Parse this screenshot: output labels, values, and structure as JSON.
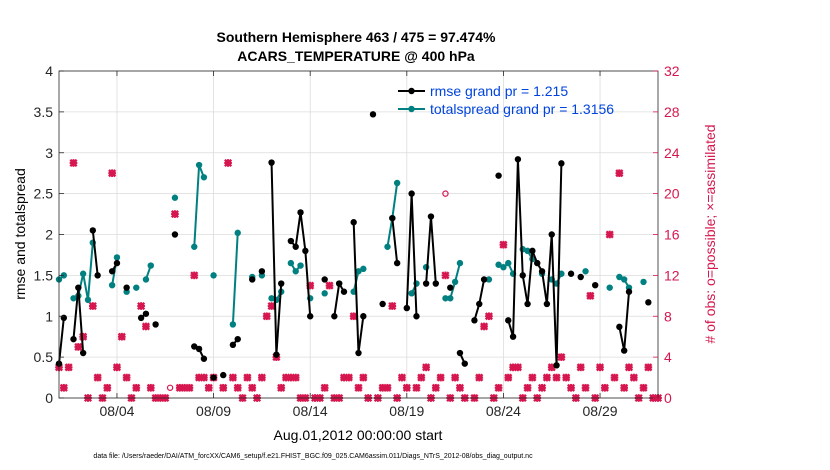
{
  "colors": {
    "rmse": "#000000",
    "spread": "#008080",
    "obs": "#d6174f",
    "legend_text": "#0044dd",
    "axis": "#262626",
    "grid": "#dcdcdc"
  },
  "chart_data": {
    "type": "scatter",
    "title": "Southern Hemisphere 463 / 475 = 97.474%",
    "subtitle": "ACARS_TEMPERATURE @ 400 hPa",
    "ylabel": "rmse and totalspread",
    "y2label": "# of obs: o=possible; ×=assimilated",
    "xlabel": "Aug.01,2012 00:00:00 start",
    "xlim": [
      0,
      31
    ],
    "ylim": [
      0,
      4
    ],
    "y2lim": [
      0,
      32
    ],
    "xticks": [
      3,
      8,
      13,
      18,
      23,
      28
    ],
    "xtick_labels": [
      "08/04",
      "08/09",
      "08/14",
      "08/19",
      "08/24",
      "08/29"
    ],
    "yticks": [
      "0",
      "0.5",
      "1",
      "1.5",
      "2",
      "2.5",
      "3",
      "3.5",
      "4"
    ],
    "y2ticks": [
      "0",
      "4",
      "8",
      "12",
      "16",
      "20",
      "24",
      "28",
      "32"
    ],
    "grid": true,
    "legend_placement": "top-right",
    "legend": [
      {
        "label": "rmse grand pr = 1.215",
        "series": "rmse"
      },
      {
        "label": "totalspread grand pr = 1.3156",
        "series": "spread"
      }
    ],
    "rmse": [
      [
        0.0,
        0.42
      ],
      [
        0.25,
        0.98
      ],
      [
        0.75,
        0.72
      ],
      [
        1.0,
        1.35
      ],
      [
        1.25,
        0.55
      ],
      [
        1.75,
        2.05
      ],
      [
        2.0,
        1.5
      ],
      [
        2.75,
        1.55
      ],
      [
        3.0,
        1.65
      ],
      [
        3.5,
        1.35
      ],
      [
        4.25,
        0.98
      ],
      [
        4.5,
        1.03
      ],
      [
        5.0,
        0.9
      ],
      [
        6.0,
        2.0
      ],
      [
        7.0,
        0.63
      ],
      [
        7.25,
        0.6
      ],
      [
        7.5,
        0.48
      ],
      [
        8.0,
        0.25
      ],
      [
        8.5,
        0.28
      ],
      [
        9.0,
        0.65
      ],
      [
        9.25,
        0.72
      ],
      [
        10.0,
        1.45
      ],
      [
        10.5,
        1.55
      ],
      [
        11.0,
        2.88
      ],
      [
        11.25,
        0.53
      ],
      [
        11.5,
        1.4
      ],
      [
        12.0,
        1.92
      ],
      [
        12.25,
        1.85
      ],
      [
        12.5,
        2.27
      ],
      [
        12.75,
        1.8
      ],
      [
        13.0,
        1.0
      ],
      [
        13.75,
        1.45
      ],
      [
        14.25,
        1.0
      ],
      [
        14.5,
        1.4
      ],
      [
        14.75,
        1.3
      ],
      [
        15.25,
        2.15
      ],
      [
        15.5,
        0.55
      ],
      [
        15.75,
        1.0
      ],
      [
        16.25,
        3.47
      ],
      [
        16.75,
        1.15
      ],
      [
        17.25,
        2.2
      ],
      [
        17.5,
        1.65
      ],
      [
        18.0,
        1.1
      ],
      [
        18.25,
        2.5
      ],
      [
        18.5,
        1.0
      ],
      [
        19.0,
        1.4
      ],
      [
        19.25,
        2.22
      ],
      [
        19.5,
        1.4
      ],
      [
        20.25,
        1.35
      ],
      [
        20.75,
        0.55
      ],
      [
        21.0,
        0.42
      ],
      [
        21.5,
        0.95
      ],
      [
        21.75,
        1.15
      ],
      [
        22.0,
        1.45
      ],
      [
        22.75,
        2.72
      ],
      [
        23.25,
        0.95
      ],
      [
        23.5,
        0.75
      ],
      [
        23.75,
        2.92
      ],
      [
        24.0,
        1.5
      ],
      [
        24.25,
        1.15
      ],
      [
        24.5,
        1.8
      ],
      [
        24.75,
        1.65
      ],
      [
        25.0,
        1.55
      ],
      [
        25.25,
        1.15
      ],
      [
        25.5,
        2.0
      ],
      [
        25.75,
        0.4
      ],
      [
        26.0,
        2.87
      ],
      [
        26.5,
        1.52
      ],
      [
        27.0,
        1.48
      ],
      [
        27.75,
        1.38
      ],
      [
        29.0,
        0.87
      ],
      [
        29.25,
        0.58
      ],
      [
        29.5,
        1.3
      ],
      [
        30.5,
        1.17
      ]
    ],
    "spread": [
      [
        0.0,
        1.45
      ],
      [
        0.25,
        1.5
      ],
      [
        0.75,
        1.22
      ],
      [
        1.0,
        1.25
      ],
      [
        1.25,
        1.52
      ],
      [
        1.5,
        1.2
      ],
      [
        1.75,
        1.9
      ],
      [
        2.75,
        1.38
      ],
      [
        3.0,
        1.72
      ],
      [
        3.5,
        1.3
      ],
      [
        4.0,
        1.35
      ],
      [
        4.5,
        1.45
      ],
      [
        4.75,
        1.62
      ],
      [
        6.0,
        2.45
      ],
      [
        7.0,
        1.85
      ],
      [
        7.25,
        2.85
      ],
      [
        7.5,
        2.7
      ],
      [
        8.0,
        1.5
      ],
      [
        9.0,
        0.9
      ],
      [
        9.25,
        2.02
      ],
      [
        10.0,
        1.48
      ],
      [
        10.5,
        1.5
      ],
      [
        11.0,
        1.22
      ],
      [
        11.25,
        1.2
      ],
      [
        11.5,
        1.3
      ],
      [
        12.0,
        1.65
      ],
      [
        12.25,
        1.55
      ],
      [
        12.5,
        1.62
      ],
      [
        13.0,
        1.22
      ],
      [
        13.75,
        1.28
      ],
      [
        14.5,
        1.4
      ],
      [
        15.25,
        1.3
      ],
      [
        15.5,
        1.55
      ],
      [
        15.75,
        1.58
      ],
      [
        17.0,
        1.85
      ],
      [
        17.25,
        2.2
      ],
      [
        17.5,
        2.63
      ],
      [
        18.25,
        1.28
      ],
      [
        18.5,
        1.4
      ],
      [
        19.0,
        1.6
      ],
      [
        20.0,
        1.22
      ],
      [
        20.25,
        1.22
      ],
      [
        20.5,
        1.42
      ],
      [
        20.75,
        1.65
      ],
      [
        22.25,
        1.45
      ],
      [
        22.75,
        1.63
      ],
      [
        23.0,
        1.6
      ],
      [
        23.25,
        1.65
      ],
      [
        23.5,
        1.52
      ],
      [
        24.0,
        1.82
      ],
      [
        24.25,
        1.8
      ],
      [
        24.5,
        1.7
      ],
      [
        25.0,
        1.52
      ],
      [
        25.5,
        1.45
      ],
      [
        25.75,
        1.4
      ],
      [
        26.0,
        1.52
      ],
      [
        27.25,
        1.55
      ],
      [
        28.5,
        1.35
      ],
      [
        29.0,
        1.48
      ],
      [
        29.25,
        1.45
      ],
      [
        29.5,
        1.35
      ],
      [
        30.25,
        1.42
      ]
    ],
    "assimilated": [
      [
        0.0,
        3
      ],
      [
        0.25,
        1
      ],
      [
        0.5,
        3
      ],
      [
        0.75,
        23
      ],
      [
        1.0,
        5
      ],
      [
        1.25,
        6
      ],
      [
        1.5,
        0
      ],
      [
        1.75,
        9
      ],
      [
        2.0,
        2
      ],
      [
        2.25,
        0
      ],
      [
        2.5,
        1
      ],
      [
        2.75,
        22
      ],
      [
        3.0,
        3
      ],
      [
        3.25,
        6
      ],
      [
        3.5,
        2
      ],
      [
        3.75,
        0
      ],
      [
        4.0,
        1
      ],
      [
        4.25,
        9
      ],
      [
        4.5,
        7
      ],
      [
        4.75,
        1
      ],
      [
        5.0,
        0
      ],
      [
        5.25,
        0
      ],
      [
        5.5,
        0
      ],
      [
        6.0,
        18
      ],
      [
        6.25,
        1
      ],
      [
        6.5,
        1
      ],
      [
        6.75,
        1
      ],
      [
        7.0,
        12
      ],
      [
        7.25,
        2
      ],
      [
        7.5,
        2
      ],
      [
        7.75,
        1
      ],
      [
        8.0,
        2
      ],
      [
        8.5,
        1
      ],
      [
        8.75,
        23
      ],
      [
        9.0,
        2
      ],
      [
        9.25,
        1
      ],
      [
        9.5,
        0
      ],
      [
        9.75,
        2
      ],
      [
        10.0,
        1
      ],
      [
        10.25,
        0
      ],
      [
        10.5,
        2
      ],
      [
        10.75,
        8
      ],
      [
        11.0,
        9
      ],
      [
        11.25,
        4
      ],
      [
        11.5,
        1
      ],
      [
        11.75,
        2
      ],
      [
        12.0,
        2
      ],
      [
        12.25,
        2
      ],
      [
        12.5,
        0
      ],
      [
        12.75,
        0
      ],
      [
        13.0,
        11
      ],
      [
        13.25,
        0
      ],
      [
        13.5,
        0
      ],
      [
        13.75,
        1
      ],
      [
        14.0,
        11
      ],
      [
        14.25,
        0
      ],
      [
        14.5,
        0
      ],
      [
        14.75,
        2
      ],
      [
        15.0,
        2
      ],
      [
        15.25,
        8
      ],
      [
        15.5,
        1
      ],
      [
        15.75,
        2
      ],
      [
        16.0,
        0
      ],
      [
        16.5,
        0
      ],
      [
        16.75,
        1
      ],
      [
        17.0,
        1
      ],
      [
        17.25,
        9
      ],
      [
        17.5,
        0
      ],
      [
        17.75,
        2
      ],
      [
        18.0,
        1
      ],
      [
        18.5,
        1
      ],
      [
        18.75,
        2
      ],
      [
        19.0,
        3
      ],
      [
        19.25,
        0
      ],
      [
        19.5,
        1
      ],
      [
        19.75,
        2
      ],
      [
        20.0,
        12
      ],
      [
        20.25,
        0
      ],
      [
        20.5,
        2
      ],
      [
        20.75,
        1
      ],
      [
        21.0,
        0
      ],
      [
        21.5,
        0
      ],
      [
        21.75,
        2
      ],
      [
        22.0,
        7
      ],
      [
        22.25,
        8
      ],
      [
        22.5,
        0
      ],
      [
        22.75,
        1
      ],
      [
        23.0,
        15
      ],
      [
        23.25,
        2
      ],
      [
        23.5,
        3
      ],
      [
        23.75,
        3
      ],
      [
        24.0,
        0
      ],
      [
        24.25,
        1
      ],
      [
        24.5,
        2
      ],
      [
        24.75,
        0
      ],
      [
        25.0,
        1
      ],
      [
        25.25,
        2
      ],
      [
        25.5,
        3
      ],
      [
        25.75,
        2
      ],
      [
        26.0,
        4
      ],
      [
        26.25,
        2
      ],
      [
        26.5,
        1
      ],
      [
        26.75,
        0
      ],
      [
        27.0,
        3
      ],
      [
        27.25,
        1
      ],
      [
        27.5,
        10
      ],
      [
        27.75,
        0
      ],
      [
        28.0,
        3
      ],
      [
        28.25,
        1
      ],
      [
        28.5,
        16
      ],
      [
        28.75,
        2
      ],
      [
        29.0,
        22
      ],
      [
        29.25,
        1
      ],
      [
        29.5,
        3
      ],
      [
        29.75,
        2
      ],
      [
        30.0,
        0
      ],
      [
        30.25,
        1
      ],
      [
        30.5,
        3
      ],
      [
        30.75,
        0
      ],
      [
        31.0,
        0
      ]
    ],
    "possible": [
      [
        0.0,
        3
      ],
      [
        0.25,
        1
      ],
      [
        0.5,
        3
      ],
      [
        0.75,
        23
      ],
      [
        1.0,
        5
      ],
      [
        1.25,
        6
      ],
      [
        1.5,
        0
      ],
      [
        1.75,
        9
      ],
      [
        2.0,
        2
      ],
      [
        2.25,
        0
      ],
      [
        2.5,
        1
      ],
      [
        2.75,
        22
      ],
      [
        3.0,
        3
      ],
      [
        3.25,
        6
      ],
      [
        3.5,
        2
      ],
      [
        3.75,
        0
      ],
      [
        4.0,
        1
      ],
      [
        4.25,
        9
      ],
      [
        4.5,
        7
      ],
      [
        4.75,
        1
      ],
      [
        5.0,
        0
      ],
      [
        5.25,
        0
      ],
      [
        5.5,
        0
      ],
      [
        5.75,
        1
      ],
      [
        6.0,
        18
      ],
      [
        6.25,
        1
      ],
      [
        6.5,
        1
      ],
      [
        6.75,
        1
      ],
      [
        7.0,
        12
      ],
      [
        7.25,
        2
      ],
      [
        7.5,
        2
      ],
      [
        7.75,
        1
      ],
      [
        8.0,
        2
      ],
      [
        8.5,
        1
      ],
      [
        8.75,
        23
      ],
      [
        9.0,
        2
      ],
      [
        9.25,
        1
      ],
      [
        9.5,
        0
      ],
      [
        9.75,
        2
      ],
      [
        10.0,
        1
      ],
      [
        10.25,
        0
      ],
      [
        10.5,
        2
      ],
      [
        10.75,
        8
      ],
      [
        11.0,
        9
      ],
      [
        11.25,
        4
      ],
      [
        11.5,
        1
      ],
      [
        11.75,
        2
      ],
      [
        12.0,
        2
      ],
      [
        12.25,
        2
      ],
      [
        12.5,
        0
      ],
      [
        12.75,
        0
      ],
      [
        13.0,
        11
      ],
      [
        13.25,
        0
      ],
      [
        13.5,
        0
      ],
      [
        13.75,
        1
      ],
      [
        14.0,
        11
      ],
      [
        14.25,
        0
      ],
      [
        14.5,
        0
      ],
      [
        14.75,
        2
      ],
      [
        15.0,
        2
      ],
      [
        15.25,
        8
      ],
      [
        15.5,
        1
      ],
      [
        15.75,
        2
      ],
      [
        16.0,
        0
      ],
      [
        16.5,
        0
      ],
      [
        16.75,
        1
      ],
      [
        17.0,
        1
      ],
      [
        17.25,
        9
      ],
      [
        17.5,
        0
      ],
      [
        17.75,
        2
      ],
      [
        18.0,
        1
      ],
      [
        18.5,
        1
      ],
      [
        18.75,
        2
      ],
      [
        19.0,
        3
      ],
      [
        19.25,
        0
      ],
      [
        19.5,
        1
      ],
      [
        19.75,
        2
      ],
      [
        20.0,
        20
      ],
      [
        20.25,
        0
      ],
      [
        20.5,
        2
      ],
      [
        20.75,
        1
      ],
      [
        21.0,
        0
      ],
      [
        21.5,
        0
      ],
      [
        21.75,
        2
      ],
      [
        22.0,
        7
      ],
      [
        22.25,
        8
      ],
      [
        22.5,
        0
      ],
      [
        22.75,
        1
      ],
      [
        23.0,
        15
      ],
      [
        23.25,
        2
      ],
      [
        23.5,
        3
      ],
      [
        23.75,
        3
      ],
      [
        24.0,
        0
      ],
      [
        24.25,
        1
      ],
      [
        24.5,
        2
      ],
      [
        24.75,
        0
      ],
      [
        25.0,
        1
      ],
      [
        25.25,
        2
      ],
      [
        25.5,
        3
      ],
      [
        25.75,
        2
      ],
      [
        26.0,
        4
      ],
      [
        26.25,
        2
      ],
      [
        26.5,
        1
      ],
      [
        26.75,
        0
      ],
      [
        27.0,
        3
      ],
      [
        27.25,
        1
      ],
      [
        27.5,
        10
      ],
      [
        27.75,
        0
      ],
      [
        28.0,
        3
      ],
      [
        28.25,
        1
      ],
      [
        28.5,
        16
      ],
      [
        28.75,
        2
      ],
      [
        29.0,
        22
      ],
      [
        29.25,
        1
      ],
      [
        29.5,
        3
      ],
      [
        29.75,
        2
      ],
      [
        30.0,
        0
      ],
      [
        30.25,
        1
      ],
      [
        30.5,
        3
      ],
      [
        30.75,
        0
      ],
      [
        31.0,
        0
      ]
    ],
    "footer": "data file: /Users/raeder/DAI/ATM_forcXX/CAM6_setup/f.e21.FHIST_BGC.f09_025.CAM6assim.011/Diags_NTrS_2012-08/obs_diag_output.nc"
  }
}
